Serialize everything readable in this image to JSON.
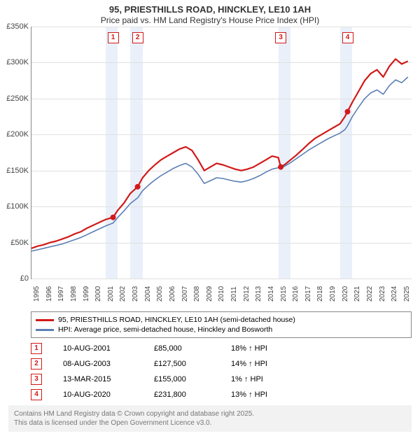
{
  "title": {
    "line1": "95, PRIESTHILLS ROAD, HINCKLEY, LE10 1AH",
    "line2": "Price paid vs. HM Land Registry's House Price Index (HPI)"
  },
  "chart": {
    "type": "line",
    "background_color": "#ffffff",
    "grid_color": "#e0e0e0",
    "axis_color": "#888888",
    "band_color": "#eaf0fa",
    "x": {
      "min": 1995,
      "max": 2025.8,
      "ticks": [
        1995,
        1996,
        1997,
        1998,
        1999,
        2000,
        2001,
        2002,
        2003,
        2004,
        2005,
        2006,
        2007,
        2008,
        2009,
        2010,
        2011,
        2012,
        2013,
        2014,
        2015,
        2016,
        2017,
        2018,
        2019,
        2020,
        2021,
        2022,
        2023,
        2024,
        2025
      ],
      "label_fontsize": 10
    },
    "y": {
      "min": 0,
      "max": 350000,
      "ticks": [
        0,
        50000,
        100000,
        150000,
        200000,
        250000,
        300000,
        350000
      ],
      "tick_labels": [
        "£0",
        "£50K",
        "£100K",
        "£150K",
        "£200K",
        "£250K",
        "£300K",
        "£350K"
      ],
      "label_fontsize": 11
    },
    "series": [
      {
        "name_key": "legend.items.0",
        "color": "#d11919",
        "width": 2.2,
        "points": [
          [
            1995.0,
            42000
          ],
          [
            1995.5,
            45000
          ],
          [
            1996.0,
            47000
          ],
          [
            1996.5,
            50000
          ],
          [
            1997.0,
            52000
          ],
          [
            1997.5,
            55000
          ],
          [
            1998.0,
            58000
          ],
          [
            1998.5,
            62000
          ],
          [
            1999.0,
            65000
          ],
          [
            1999.5,
            70000
          ],
          [
            2000.0,
            74000
          ],
          [
            2000.5,
            78000
          ],
          [
            2001.0,
            82000
          ],
          [
            2001.6,
            85000
          ],
          [
            2002.0,
            95000
          ],
          [
            2002.5,
            105000
          ],
          [
            2003.0,
            118000
          ],
          [
            2003.6,
            127500
          ],
          [
            2004.0,
            140000
          ],
          [
            2004.5,
            150000
          ],
          [
            2005.0,
            158000
          ],
          [
            2005.5,
            165000
          ],
          [
            2006.0,
            170000
          ],
          [
            2006.5,
            175000
          ],
          [
            2007.0,
            180000
          ],
          [
            2007.5,
            183000
          ],
          [
            2008.0,
            178000
          ],
          [
            2008.5,
            165000
          ],
          [
            2009.0,
            150000
          ],
          [
            2009.5,
            155000
          ],
          [
            2010.0,
            160000
          ],
          [
            2010.5,
            158000
          ],
          [
            2011.0,
            155000
          ],
          [
            2011.5,
            152000
          ],
          [
            2012.0,
            150000
          ],
          [
            2012.5,
            152000
          ],
          [
            2013.0,
            155000
          ],
          [
            2013.5,
            160000
          ],
          [
            2014.0,
            165000
          ],
          [
            2014.5,
            170000
          ],
          [
            2015.0,
            168000
          ],
          [
            2015.2,
            155000
          ],
          [
            2015.5,
            158000
          ],
          [
            2016.0,
            165000
          ],
          [
            2016.5,
            172000
          ],
          [
            2017.0,
            180000
          ],
          [
            2017.5,
            188000
          ],
          [
            2018.0,
            195000
          ],
          [
            2018.5,
            200000
          ],
          [
            2019.0,
            205000
          ],
          [
            2019.5,
            210000
          ],
          [
            2020.0,
            215000
          ],
          [
            2020.4,
            225000
          ],
          [
            2020.6,
            231800
          ],
          [
            2021.0,
            245000
          ],
          [
            2021.5,
            260000
          ],
          [
            2022.0,
            275000
          ],
          [
            2022.5,
            285000
          ],
          [
            2023.0,
            290000
          ],
          [
            2023.5,
            280000
          ],
          [
            2024.0,
            295000
          ],
          [
            2024.5,
            305000
          ],
          [
            2025.0,
            298000
          ],
          [
            2025.5,
            302000
          ]
        ]
      },
      {
        "name_key": "legend.items.1",
        "color": "#5b7fb5",
        "width": 1.6,
        "points": [
          [
            1995.0,
            38000
          ],
          [
            1995.5,
            40000
          ],
          [
            1996.0,
            42000
          ],
          [
            1996.5,
            44000
          ],
          [
            1997.0,
            46000
          ],
          [
            1997.5,
            48000
          ],
          [
            1998.0,
            51000
          ],
          [
            1998.5,
            54000
          ],
          [
            1999.0,
            57000
          ],
          [
            1999.5,
            61000
          ],
          [
            2000.0,
            65000
          ],
          [
            2000.5,
            69000
          ],
          [
            2001.0,
            73000
          ],
          [
            2001.6,
            77000
          ],
          [
            2002.0,
            85000
          ],
          [
            2002.5,
            94000
          ],
          [
            2003.0,
            104000
          ],
          [
            2003.6,
            112000
          ],
          [
            2004.0,
            122000
          ],
          [
            2004.5,
            130000
          ],
          [
            2005.0,
            137000
          ],
          [
            2005.5,
            143000
          ],
          [
            2006.0,
            148000
          ],
          [
            2006.5,
            153000
          ],
          [
            2007.0,
            157000
          ],
          [
            2007.5,
            160000
          ],
          [
            2008.0,
            155000
          ],
          [
            2008.5,
            145000
          ],
          [
            2009.0,
            132000
          ],
          [
            2009.5,
            136000
          ],
          [
            2010.0,
            140000
          ],
          [
            2010.5,
            139000
          ],
          [
            2011.0,
            137000
          ],
          [
            2011.5,
            135000
          ],
          [
            2012.0,
            134000
          ],
          [
            2012.5,
            136000
          ],
          [
            2013.0,
            139000
          ],
          [
            2013.5,
            143000
          ],
          [
            2014.0,
            148000
          ],
          [
            2014.5,
            152000
          ],
          [
            2015.0,
            154000
          ],
          [
            2015.2,
            153000
          ],
          [
            2015.5,
            156000
          ],
          [
            2016.0,
            161000
          ],
          [
            2016.5,
            167000
          ],
          [
            2017.0,
            173000
          ],
          [
            2017.5,
            179000
          ],
          [
            2018.0,
            184000
          ],
          [
            2018.5,
            189000
          ],
          [
            2019.0,
            194000
          ],
          [
            2019.5,
            198000
          ],
          [
            2020.0,
            202000
          ],
          [
            2020.4,
            207000
          ],
          [
            2020.6,
            212000
          ],
          [
            2021.0,
            225000
          ],
          [
            2021.5,
            238000
          ],
          [
            2022.0,
            250000
          ],
          [
            2022.5,
            258000
          ],
          [
            2023.0,
            262000
          ],
          [
            2023.5,
            256000
          ],
          [
            2024.0,
            268000
          ],
          [
            2024.5,
            276000
          ],
          [
            2025.0,
            272000
          ],
          [
            2025.5,
            280000
          ]
        ]
      }
    ],
    "sale_markers": [
      {
        "n": "1",
        "x": 2001.61,
        "y": 85000,
        "color": "#d11919",
        "box_top_offset": -55
      },
      {
        "n": "2",
        "x": 2003.6,
        "y": 127500,
        "color": "#d11919",
        "box_top_offset": -55
      },
      {
        "n": "3",
        "x": 2015.2,
        "y": 155000,
        "color": "#d11919",
        "box_top_offset": -55
      },
      {
        "n": "4",
        "x": 2020.61,
        "y": 231800,
        "color": "#d11919",
        "box_top_offset": -55
      }
    ]
  },
  "legend": {
    "items": [
      "95, PRIESTHILLS ROAD, HINCKLEY, LE10 1AH (semi-detached house)",
      "HPI: Average price, semi-detached house, Hinckley and Bosworth"
    ],
    "colors": [
      "#d11919",
      "#5b7fb5"
    ]
  },
  "sales": [
    {
      "n": "1",
      "date": "10-AUG-2001",
      "price": "£85,000",
      "delta": "18%",
      "arrow": "↑",
      "suffix": "HPI",
      "color": "#d11919"
    },
    {
      "n": "2",
      "date": "08-AUG-2003",
      "price": "£127,500",
      "delta": "14%",
      "arrow": "↑",
      "suffix": "HPI",
      "color": "#d11919"
    },
    {
      "n": "3",
      "date": "13-MAR-2015",
      "price": "£155,000",
      "delta": "1%",
      "arrow": "↑",
      "suffix": "HPI",
      "color": "#d11919"
    },
    {
      "n": "4",
      "date": "10-AUG-2020",
      "price": "£231,800",
      "delta": "13%",
      "arrow": "↑",
      "suffix": "HPI",
      "color": "#d11919"
    }
  ],
  "attribution": {
    "line1": "Contains HM Land Registry data © Crown copyright and database right 2025.",
    "line2": "This data is licensed under the Open Government Licence v3.0."
  }
}
